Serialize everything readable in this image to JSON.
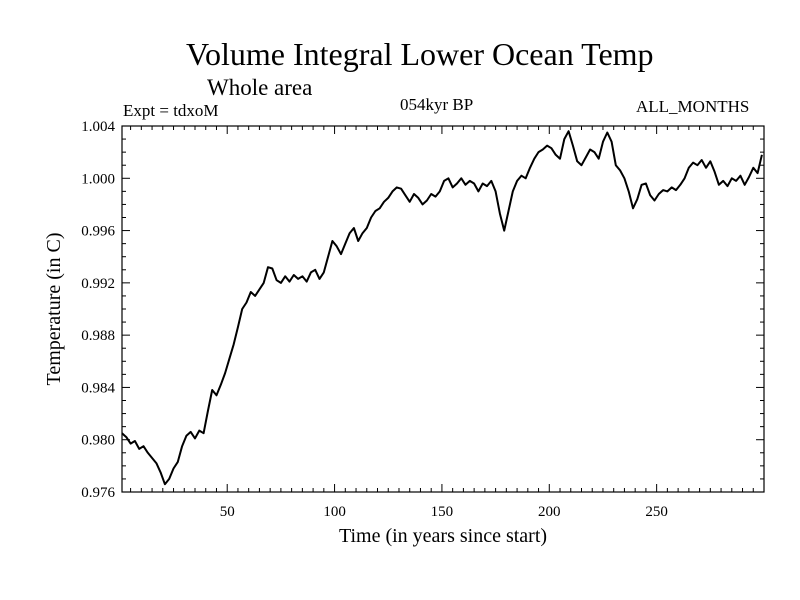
{
  "header": {
    "title": "Volume Integral Lower Ocean Temp",
    "subtitle": "Whole area",
    "experiment": "Expt = tdxoM",
    "period": "054kyr BP",
    "months": "ALL_MONTHS"
  },
  "chart_data": {
    "type": "line",
    "title": "Volume Integral Lower Ocean Temp",
    "subtitle": "Whole area",
    "xlabel": "Time (in years since start)",
    "ylabel": "Temperature (in C)",
    "xlim": [
      1,
      300
    ],
    "ylim": [
      0.976,
      1.004
    ],
    "xticks": [
      50,
      100,
      150,
      200,
      250
    ],
    "yticks": [
      0.976,
      0.98,
      0.984,
      0.988,
      0.992,
      0.996,
      1.0,
      1.004
    ],
    "yticklabels": [
      "0.976",
      "0.980",
      "0.984",
      "0.988",
      "0.992",
      "0.996",
      "1.000",
      "1.004"
    ],
    "grid": false,
    "series": [
      {
        "color": "#000000",
        "x": [
          1,
          3,
          5,
          7,
          9,
          11,
          13,
          15,
          17,
          19,
          21,
          23,
          25,
          27,
          29,
          31,
          33,
          35,
          37,
          39,
          41,
          43,
          45,
          47,
          49,
          51,
          53,
          55,
          57,
          59,
          61,
          63,
          65,
          67,
          69,
          71,
          73,
          75,
          77,
          79,
          81,
          83,
          85,
          87,
          89,
          91,
          93,
          95,
          97,
          99,
          101,
          103,
          105,
          107,
          109,
          111,
          113,
          115,
          117,
          119,
          121,
          123,
          125,
          127,
          129,
          131,
          133,
          135,
          137,
          139,
          141,
          143,
          145,
          147,
          149,
          151,
          153,
          155,
          157,
          159,
          161,
          163,
          165,
          167,
          169,
          171,
          173,
          175,
          177,
          179,
          181,
          183,
          185,
          187,
          189,
          191,
          193,
          195,
          197,
          199,
          201,
          203,
          205,
          207,
          209,
          211,
          213,
          215,
          217,
          219,
          221,
          223,
          225,
          227,
          229,
          231,
          233,
          235,
          237,
          239,
          241,
          243,
          245,
          247,
          249,
          251,
          253,
          255,
          257,
          259,
          261,
          263,
          265,
          267,
          269,
          271,
          273,
          275,
          277,
          279,
          281,
          283,
          285,
          287,
          289,
          291,
          293,
          295,
          297,
          299
        ],
        "y": [
          0.9805,
          0.9802,
          0.9797,
          0.9799,
          0.9793,
          0.9795,
          0.979,
          0.9786,
          0.9782,
          0.9775,
          0.9766,
          0.977,
          0.9778,
          0.9783,
          0.9795,
          0.9803,
          0.9806,
          0.9801,
          0.9807,
          0.9805,
          0.9822,
          0.9838,
          0.9834,
          0.9842,
          0.9851,
          0.9862,
          0.9873,
          0.9886,
          0.99,
          0.9905,
          0.9913,
          0.991,
          0.9915,
          0.992,
          0.9932,
          0.9931,
          0.9922,
          0.992,
          0.9925,
          0.9921,
          0.9926,
          0.9923,
          0.9925,
          0.9921,
          0.9928,
          0.993,
          0.9923,
          0.9928,
          0.994,
          0.9952,
          0.9948,
          0.9942,
          0.995,
          0.9958,
          0.9962,
          0.9952,
          0.9958,
          0.9962,
          0.997,
          0.9975,
          0.9977,
          0.9982,
          0.9985,
          0.999,
          0.9993,
          0.9992,
          0.9987,
          0.9982,
          0.9988,
          0.9985,
          0.998,
          0.9983,
          0.9988,
          0.9986,
          0.999,
          0.9998,
          1.0,
          0.9993,
          0.9996,
          1.0,
          0.9995,
          0.9998,
          0.9996,
          0.999,
          0.9996,
          0.9994,
          0.9998,
          0.999,
          0.9973,
          0.996,
          0.9975,
          0.999,
          0.9998,
          1.0002,
          1.0,
          1.0008,
          1.0015,
          1.002,
          1.0022,
          1.0025,
          1.0023,
          1.0018,
          1.0015,
          1.003,
          1.0036,
          1.0025,
          1.0013,
          1.001,
          1.0016,
          1.0022,
          1.002,
          1.0015,
          1.0028,
          1.0035,
          1.0028,
          1.001,
          1.0006,
          1.0,
          0.999,
          0.9977,
          0.9984,
          0.9995,
          0.9996,
          0.9987,
          0.9983,
          0.9988,
          0.9991,
          0.999,
          0.9993,
          0.9991,
          0.9995,
          1.0,
          1.0008,
          1.0012,
          1.001,
          1.0014,
          1.0008,
          1.0013,
          1.0005,
          0.9995,
          0.9998,
          0.9994,
          1.0,
          0.9998,
          1.0002,
          0.9995,
          1.0001,
          1.0008,
          1.0004,
          1.0018
        ]
      }
    ]
  }
}
